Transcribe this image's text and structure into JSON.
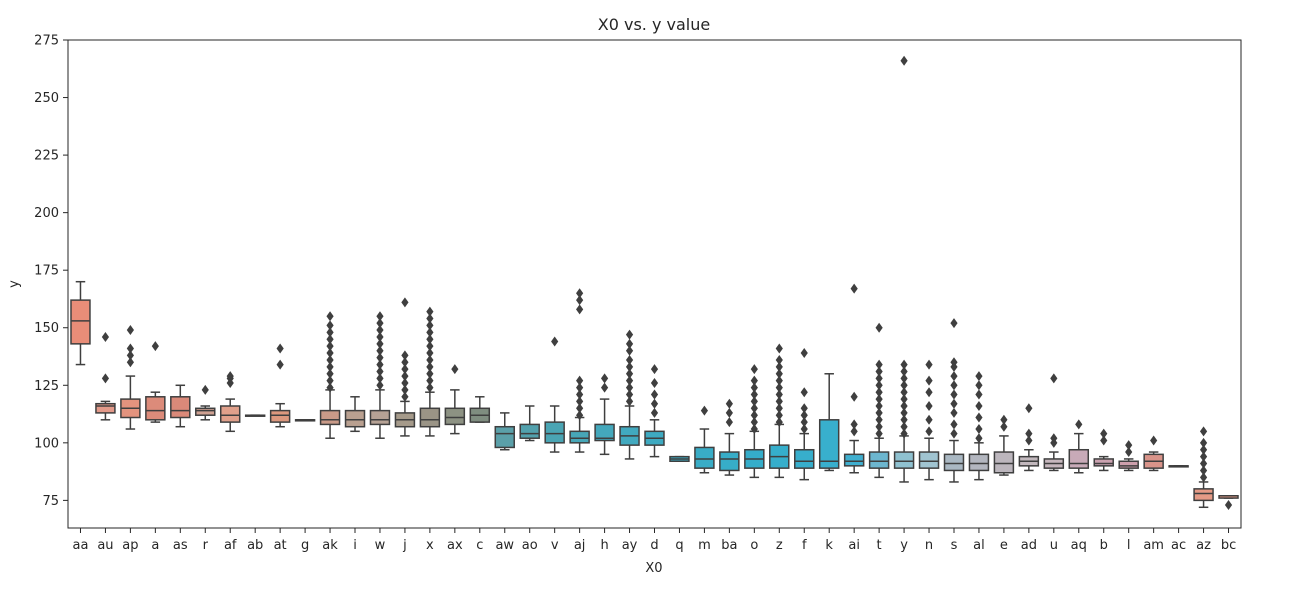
{
  "chart_data": {
    "type": "box",
    "title": "X0 vs. y value",
    "xlabel": "X0",
    "ylabel": "y",
    "ylim": [
      63,
      275
    ],
    "yticks": [
      75,
      100,
      125,
      150,
      175,
      200,
      225,
      250,
      275
    ],
    "grid": false,
    "legend": "none",
    "boxes": [
      {
        "category": "aa",
        "min": 134,
        "q1": 143,
        "median": 153,
        "q3": 162,
        "max": 170,
        "outliers": [],
        "color": "#e98d78"
      },
      {
        "category": "au",
        "min": 110,
        "q1": 113,
        "median": 116,
        "q3": 117,
        "max": 118,
        "outliers": [
          128,
          146
        ],
        "color": "#e39a8a"
      },
      {
        "category": "ap",
        "min": 106,
        "q1": 111,
        "median": 115,
        "q3": 119,
        "max": 129,
        "outliers": [
          135,
          138,
          141,
          149
        ],
        "color": "#e3937e"
      },
      {
        "category": "a",
        "min": 109,
        "q1": 110,
        "median": 114,
        "q3": 120,
        "max": 122,
        "outliers": [
          142
        ],
        "color": "#dc8b7a"
      },
      {
        "category": "as",
        "min": 107,
        "q1": 111,
        "median": 114,
        "q3": 120,
        "max": 125,
        "outliers": [],
        "color": "#da8979"
      },
      {
        "category": "r",
        "min": 110,
        "q1": 112,
        "median": 114,
        "q3": 115,
        "max": 116,
        "outliers": [
          123
        ],
        "color": "#cfa192"
      },
      {
        "category": "af",
        "min": 105,
        "q1": 109,
        "median": 112,
        "q3": 116,
        "max": 119,
        "outliers": [
          126,
          128,
          129
        ],
        "color": "#e0a08b"
      },
      {
        "category": "ab",
        "min": 112,
        "q1": 112,
        "median": 112,
        "q3": 112,
        "max": 112,
        "outliers": [],
        "color": "#b58f7d"
      },
      {
        "category": "at",
        "min": 107,
        "q1": 109,
        "median": 112,
        "q3": 114,
        "max": 117,
        "outliers": [
          134,
          141
        ],
        "color": "#dc987e"
      },
      {
        "category": "g",
        "min": 110,
        "q1": 110,
        "median": 110,
        "q3": 110,
        "max": 110,
        "outliers": [],
        "color": "#9c8c7c"
      },
      {
        "category": "ak",
        "min": 102,
        "q1": 108,
        "median": 110,
        "q3": 114,
        "max": 123,
        "outliers": [
          124,
          127,
          130,
          133,
          136,
          139,
          142,
          145,
          148,
          151,
          155
        ],
        "color": "#c99a88"
      },
      {
        "category": "i",
        "min": 105,
        "q1": 107,
        "median": 110,
        "q3": 114,
        "max": 120,
        "outliers": [],
        "color": "#b9a090"
      },
      {
        "category": "w",
        "min": 102,
        "q1": 108,
        "median": 110,
        "q3": 114,
        "max": 123,
        "outliers": [
          125,
          128,
          131,
          134,
          137,
          140,
          143,
          146,
          149,
          152,
          155
        ],
        "color": "#b6a295"
      },
      {
        "category": "j",
        "min": 103,
        "q1": 107,
        "median": 110,
        "q3": 113,
        "max": 118,
        "outliers": [
          120,
          123,
          126,
          129,
          132,
          135,
          138,
          161
        ],
        "color": "#a59a8a"
      },
      {
        "category": "x",
        "min": 103,
        "q1": 107,
        "median": 110,
        "q3": 115,
        "max": 122,
        "outliers": [
          124,
          127,
          130,
          133,
          136,
          139,
          142,
          145,
          148,
          151,
          154,
          157
        ],
        "color": "#9a9486"
      },
      {
        "category": "ax",
        "min": 104,
        "q1": 108,
        "median": 111,
        "q3": 115,
        "max": 123,
        "outliers": [
          132
        ],
        "color": "#8d9283"
      },
      {
        "category": "c",
        "min": 109,
        "q1": 109,
        "median": 112,
        "q3": 115,
        "max": 120,
        "outliers": [],
        "color": "#7f8d80"
      },
      {
        "category": "aw",
        "min": 97,
        "q1": 98,
        "median": 104,
        "q3": 107,
        "max": 113,
        "outliers": [],
        "color": "#5ba0a9"
      },
      {
        "category": "ao",
        "min": 101,
        "q1": 102,
        "median": 104,
        "q3": 108,
        "max": 116,
        "outliers": [],
        "color": "#52a1ad"
      },
      {
        "category": "v",
        "min": 96,
        "q1": 100,
        "median": 104,
        "q3": 109,
        "max": 116,
        "outliers": [
          144
        ],
        "color": "#4aa5b4"
      },
      {
        "category": "aj",
        "min": 96,
        "q1": 100,
        "median": 102,
        "q3": 105,
        "max": 111,
        "outliers": [
          112,
          115,
          118,
          121,
          124,
          127,
          158,
          162,
          165
        ],
        "color": "#47a7b8"
      },
      {
        "category": "h",
        "min": 95,
        "q1": 101,
        "median": 102,
        "q3": 108,
        "max": 119,
        "outliers": [
          124,
          128
        ],
        "color": "#44a8bc"
      },
      {
        "category": "ay",
        "min": 93,
        "q1": 99,
        "median": 103,
        "q3": 107,
        "max": 116,
        "outliers": [
          118,
          121,
          124,
          127,
          130,
          133,
          136,
          140,
          143,
          147
        ],
        "color": "#41a9bf"
      },
      {
        "category": "d",
        "min": 94,
        "q1": 99,
        "median": 102,
        "q3": 105,
        "max": 110,
        "outliers": [
          113,
          117,
          121,
          126,
          132
        ],
        "color": "#3eaac1"
      },
      {
        "category": "q",
        "min": 92,
        "q1": 92,
        "median": 93,
        "q3": 94,
        "max": 94,
        "outliers": [],
        "color": "#3babc3"
      },
      {
        "category": "m",
        "min": 87,
        "q1": 89,
        "median": 93,
        "q3": 98,
        "max": 106,
        "outliers": [
          114
        ],
        "color": "#39acc6"
      },
      {
        "category": "ba",
        "min": 86,
        "q1": 88,
        "median": 93,
        "q3": 96,
        "max": 104,
        "outliers": [
          109,
          113,
          117
        ],
        "color": "#37adc8"
      },
      {
        "category": "o",
        "min": 85,
        "q1": 89,
        "median": 93,
        "q3": 97,
        "max": 105,
        "outliers": [
          106,
          109,
          112,
          115,
          118,
          121,
          124,
          127,
          132
        ],
        "color": "#35adca"
      },
      {
        "category": "z",
        "min": 85,
        "q1": 89,
        "median": 94,
        "q3": 99,
        "max": 108,
        "outliers": [
          109,
          112,
          115,
          118,
          121,
          124,
          127,
          130,
          133,
          136,
          141
        ],
        "color": "#36aecb"
      },
      {
        "category": "f",
        "min": 84,
        "q1": 89,
        "median": 92,
        "q3": 97,
        "max": 104,
        "outliers": [
          106,
          109,
          112,
          115,
          122,
          139
        ],
        "color": "#37aecc"
      },
      {
        "category": "k",
        "min": 88,
        "q1": 89,
        "median": 92,
        "q3": 110,
        "max": 130,
        "outliers": [],
        "color": "#38afcd"
      },
      {
        "category": "ai",
        "min": 87,
        "q1": 90,
        "median": 92,
        "q3": 95,
        "max": 101,
        "outliers": [
          105,
          108,
          120,
          167
        ],
        "color": "#40afcf"
      },
      {
        "category": "t",
        "min": 85,
        "q1": 89,
        "median": 92,
        "q3": 96,
        "max": 102,
        "outliers": [
          104,
          107,
          110,
          113,
          116,
          119,
          122,
          125,
          128,
          131,
          134,
          150
        ],
        "color": "#6cb6cf"
      },
      {
        "category": "y",
        "min": 83,
        "q1": 89,
        "median": 92,
        "q3": 96,
        "max": 103,
        "outliers": [
          104,
          107,
          110,
          113,
          116,
          119,
          122,
          125,
          128,
          131,
          134,
          266
        ],
        "color": "#8fc1d0"
      },
      {
        "category": "n",
        "min": 84,
        "q1": 89,
        "median": 92,
        "q3": 96,
        "max": 102,
        "outliers": [
          105,
          110,
          116,
          122,
          127,
          134
        ],
        "color": "#a0c4d1"
      },
      {
        "category": "s",
        "min": 83,
        "q1": 88,
        "median": 91,
        "q3": 95,
        "max": 101,
        "outliers": [
          104,
          108,
          113,
          117,
          121,
          125,
          129,
          133,
          135,
          152
        ],
        "color": "#aab8c3"
      },
      {
        "category": "al",
        "min": 84,
        "q1": 88,
        "median": 91,
        "q3": 95,
        "max": 100,
        "outliers": [
          102,
          106,
          111,
          116,
          121,
          125,
          129
        ],
        "color": "#b3b6bf"
      },
      {
        "category": "e",
        "min": 86,
        "q1": 87,
        "median": 91,
        "q3": 96,
        "max": 103,
        "outliers": [
          107,
          110
        ],
        "color": "#bcb6bd"
      },
      {
        "category": "ad",
        "min": 88,
        "q1": 90,
        "median": 92,
        "q3": 94,
        "max": 97,
        "outliers": [
          101,
          104,
          115
        ],
        "color": "#c2b8bd"
      },
      {
        "category": "u",
        "min": 88,
        "q1": 89,
        "median": 91,
        "q3": 93,
        "max": 96,
        "outliers": [
          100,
          102,
          128
        ],
        "color": "#c6b7bd"
      },
      {
        "category": "aq",
        "min": 87,
        "q1": 89,
        "median": 91,
        "q3": 97,
        "max": 104,
        "outliers": [
          108
        ],
        "color": "#c8aab8"
      },
      {
        "category": "b",
        "min": 88,
        "q1": 90,
        "median": 91,
        "q3": 93,
        "max": 94,
        "outliers": [
          101,
          104
        ],
        "color": "#cba2b0"
      },
      {
        "category": "l",
        "min": 88,
        "q1": 89,
        "median": 90,
        "q3": 92,
        "max": 93,
        "outliers": [
          96,
          99
        ],
        "color": "#cd9fac"
      },
      {
        "category": "am",
        "min": 88,
        "q1": 89,
        "median": 92,
        "q3": 95,
        "max": 96,
        "outliers": [
          101
        ],
        "color": "#d9948a"
      },
      {
        "category": "ac",
        "min": 90,
        "q1": 90,
        "median": 90,
        "q3": 90,
        "max": 90,
        "outliers": [],
        "color": "#d99687"
      },
      {
        "category": "az",
        "min": 72,
        "q1": 75,
        "median": 78,
        "q3": 80,
        "max": 83,
        "outliers": [
          85,
          88,
          91,
          94,
          97,
          100,
          105
        ],
        "color": "#e49a86"
      },
      {
        "category": "bc",
        "min": 76,
        "q1": 76,
        "median": 77,
        "q3": 77,
        "max": 77,
        "outliers": [
          73
        ],
        "color": "#e79c84"
      }
    ]
  }
}
